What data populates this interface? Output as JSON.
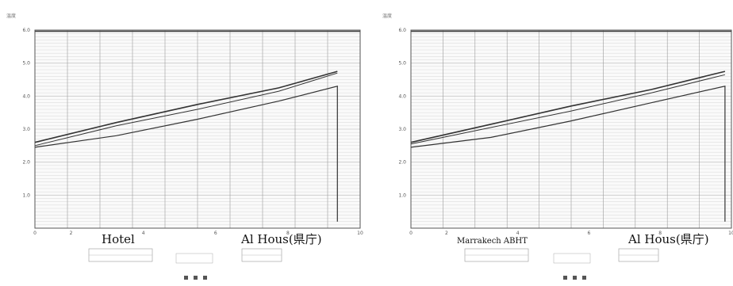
{
  "chart_data": [
    {
      "type": "line",
      "panel": "left",
      "ylabel": "温度",
      "title": "",
      "xlim": [
        0,
        1.0
      ],
      "ylim": [
        0,
        6
      ],
      "x_ticks": [
        "0",
        "2",
        "",
        "4",
        "",
        "6",
        "",
        "8",
        "",
        "10"
      ],
      "y_ticks": [
        "",
        "1.0",
        "2.0",
        "3.0",
        "4.0",
        "5.0",
        "6.0"
      ],
      "grid": true,
      "series": [
        {
          "x": [
            0,
            0.25,
            0.5,
            0.75,
            0.93
          ],
          "y": [
            2.6,
            3.2,
            3.75,
            4.25,
            4.75
          ]
        },
        {
          "x": [
            0,
            0.25,
            0.5,
            0.75,
            0.93
          ],
          "y": [
            2.5,
            3.1,
            3.6,
            4.15,
            4.7
          ]
        },
        {
          "x": [
            0,
            0.25,
            0.5,
            0.75,
            0.93,
            0.93
          ],
          "y": [
            2.45,
            2.8,
            3.3,
            3.85,
            4.3,
            0.2
          ]
        }
      ],
      "annotations": {
        "left_name": "Hotel",
        "right_name": "Al Hous(県庁)"
      }
    },
    {
      "type": "line",
      "panel": "right",
      "ylabel": "温度",
      "title": "",
      "xlim": [
        0,
        1.0
      ],
      "ylim": [
        0,
        6
      ],
      "x_ticks": [
        "0",
        "2",
        "",
        "4",
        "",
        "6",
        "",
        "8",
        "",
        "10"
      ],
      "y_ticks": [
        "",
        "1.0",
        "2.0",
        "3.0",
        "4.0",
        "5.0",
        "6.0"
      ],
      "grid": true,
      "series": [
        {
          "x": [
            0,
            0.25,
            0.5,
            0.75,
            0.98
          ],
          "y": [
            2.6,
            3.15,
            3.7,
            4.2,
            4.75
          ]
        },
        {
          "x": [
            0,
            0.25,
            0.5,
            0.75,
            0.98
          ],
          "y": [
            2.55,
            3.05,
            3.55,
            4.1,
            4.65
          ]
        },
        {
          "x": [
            0,
            0.25,
            0.5,
            0.75,
            0.98,
            0.98
          ],
          "y": [
            2.45,
            2.75,
            3.25,
            3.8,
            4.3,
            0.2
          ]
        }
      ],
      "annotations": {
        "left_name": "Marrakech ABHT",
        "right_name": "Al Hous(県庁)"
      }
    }
  ],
  "style": {
    "line_color": "#333333",
    "grid_color": "#c8c8c8",
    "frame_color": "#555555"
  }
}
